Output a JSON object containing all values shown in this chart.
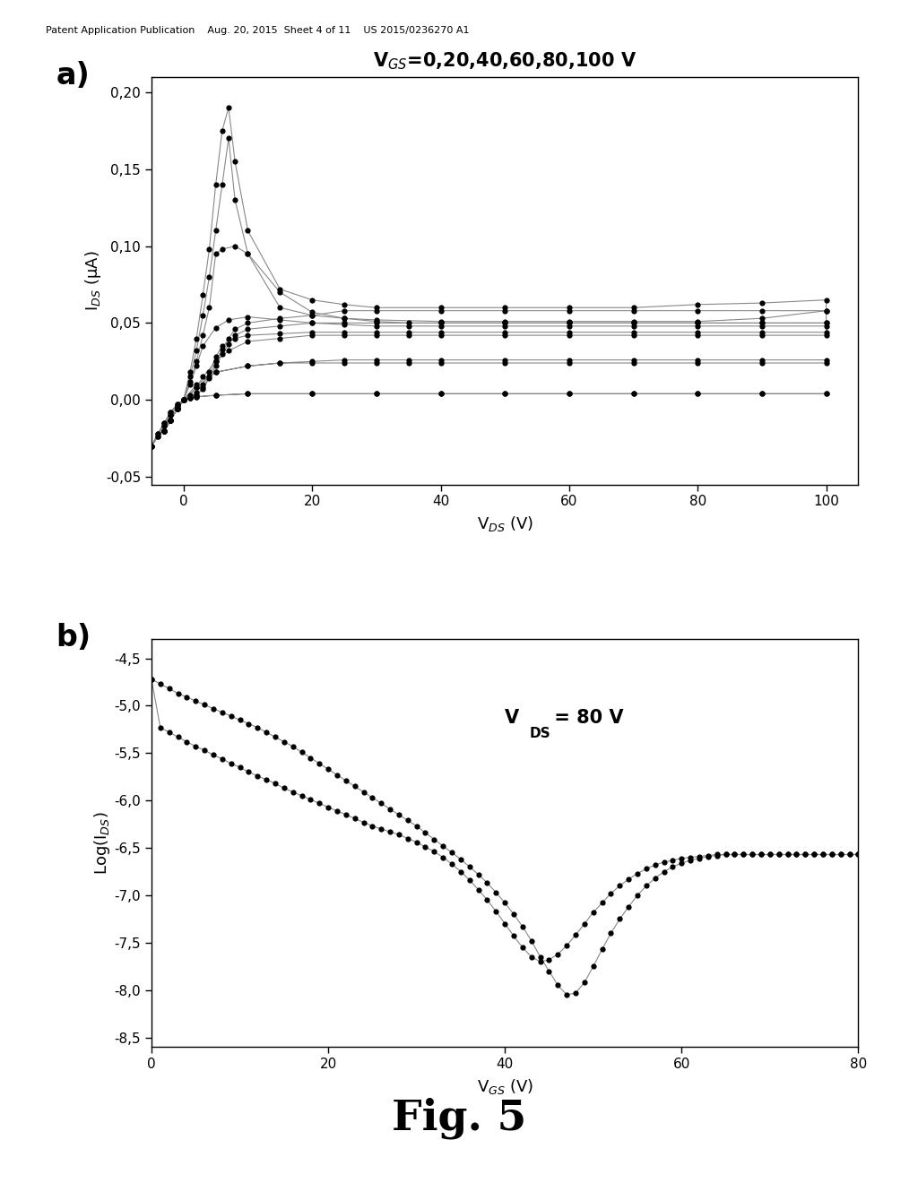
{
  "fig_width": 10.24,
  "fig_height": 13.2,
  "background_color": "#ffffff",
  "panel_a": {
    "title": "V$_{GS}$=0,20,40,60,80,100 V",
    "xlabel": "V$_{DS}$ (V)",
    "ylabel": "I$_{DS}$ (μA)",
    "xlim": [
      -5,
      105
    ],
    "ylim": [
      -0.055,
      0.21
    ],
    "yticks": [
      -0.05,
      0.0,
      0.05,
      0.1,
      0.15,
      0.2
    ],
    "xticks": [
      0,
      20,
      40,
      60,
      80,
      100
    ],
    "curves": [
      {
        "vgs": 0,
        "x": [
          -5,
          -4,
          -3,
          -2,
          -1,
          0,
          2,
          5,
          10,
          20,
          30,
          40,
          50,
          60,
          70,
          80,
          90,
          100,
          100,
          90,
          80,
          70,
          60,
          50,
          40,
          30,
          20,
          10,
          5,
          2,
          0,
          -1,
          -2,
          -3,
          -4,
          -5
        ],
        "y": [
          -0.03,
          -0.024,
          -0.017,
          -0.01,
          -0.004,
          0.0,
          0.002,
          0.003,
          0.004,
          0.004,
          0.004,
          0.004,
          0.004,
          0.004,
          0.004,
          0.004,
          0.004,
          0.004,
          0.004,
          0.004,
          0.004,
          0.004,
          0.004,
          0.004,
          0.004,
          0.004,
          0.004,
          0.004,
          0.003,
          0.002,
          0.0,
          -0.004,
          -0.01,
          -0.017,
          -0.024,
          -0.03
        ]
      },
      {
        "vgs": 20,
        "x": [
          -5,
          -4,
          -3,
          -2,
          -1,
          0,
          2,
          5,
          10,
          15,
          20,
          25,
          30,
          35,
          40,
          50,
          60,
          70,
          80,
          90,
          100,
          100,
          90,
          80,
          70,
          60,
          50,
          40,
          35,
          30,
          25,
          20,
          15,
          10,
          5,
          2,
          0,
          -1,
          -2,
          -3,
          -4,
          -5
        ],
        "y": [
          -0.03,
          -0.022,
          -0.015,
          -0.008,
          -0.003,
          0.0,
          0.01,
          0.018,
          0.022,
          0.024,
          0.025,
          0.026,
          0.026,
          0.026,
          0.026,
          0.026,
          0.026,
          0.026,
          0.026,
          0.026,
          0.026,
          0.024,
          0.024,
          0.024,
          0.024,
          0.024,
          0.024,
          0.024,
          0.024,
          0.024,
          0.024,
          0.024,
          0.024,
          0.022,
          0.018,
          0.008,
          0.0,
          -0.003,
          -0.008,
          -0.015,
          -0.022,
          -0.03
        ]
      },
      {
        "vgs": 40,
        "x": [
          -3,
          -2,
          -1,
          0,
          1,
          2,
          3,
          5,
          7,
          10,
          15,
          20,
          25,
          30,
          35,
          40,
          50,
          60,
          70,
          80,
          90,
          100,
          100,
          90,
          80,
          70,
          60,
          50,
          40,
          35,
          30,
          25,
          20,
          15,
          10,
          7,
          5,
          3,
          2,
          1,
          0,
          -1,
          -2,
          -3
        ],
        "y": [
          -0.02,
          -0.013,
          -0.006,
          0.0,
          0.01,
          0.022,
          0.035,
          0.047,
          0.052,
          0.054,
          0.052,
          0.05,
          0.049,
          0.048,
          0.048,
          0.048,
          0.048,
          0.048,
          0.048,
          0.048,
          0.048,
          0.048,
          0.042,
          0.042,
          0.042,
          0.042,
          0.042,
          0.042,
          0.042,
          0.042,
          0.042,
          0.042,
          0.042,
          0.04,
          0.038,
          0.032,
          0.025,
          0.015,
          0.008,
          0.003,
          0.0,
          -0.006,
          -0.013,
          -0.02
        ]
      },
      {
        "vgs": 60,
        "x": [
          -3,
          -2,
          -1,
          0,
          1,
          2,
          3,
          4,
          5,
          6,
          8,
          10,
          15,
          20,
          25,
          30,
          35,
          40,
          50,
          60,
          70,
          80,
          90,
          100,
          100,
          90,
          80,
          70,
          60,
          50,
          40,
          35,
          30,
          25,
          20,
          15,
          10,
          8,
          6,
          5,
          4,
          3,
          2,
          1,
          0,
          -1,
          -2,
          -3
        ],
        "y": [
          -0.02,
          -0.013,
          -0.006,
          0.0,
          0.012,
          0.025,
          0.042,
          0.06,
          0.095,
          0.098,
          0.1,
          0.095,
          0.07,
          0.057,
          0.053,
          0.051,
          0.05,
          0.05,
          0.05,
          0.05,
          0.05,
          0.05,
          0.05,
          0.05,
          0.044,
          0.044,
          0.044,
          0.044,
          0.044,
          0.044,
          0.044,
          0.044,
          0.044,
          0.044,
          0.044,
          0.043,
          0.042,
          0.04,
          0.035,
          0.028,
          0.018,
          0.01,
          0.005,
          0.001,
          0.0,
          -0.006,
          -0.013,
          -0.02
        ]
      },
      {
        "vgs": 80,
        "x": [
          -3,
          -2,
          -1,
          0,
          1,
          2,
          3,
          4,
          5,
          6,
          7,
          8,
          10,
          15,
          20,
          25,
          30,
          40,
          50,
          60,
          70,
          80,
          90,
          100,
          100,
          90,
          80,
          70,
          60,
          50,
          40,
          30,
          25,
          20,
          15,
          10,
          8,
          7,
          6,
          5,
          4,
          3,
          2,
          1,
          0,
          -1,
          -2,
          -3
        ],
        "y": [
          -0.02,
          -0.013,
          -0.006,
          0.0,
          0.015,
          0.032,
          0.055,
          0.08,
          0.11,
          0.14,
          0.17,
          0.13,
          0.095,
          0.06,
          0.055,
          0.053,
          0.052,
          0.051,
          0.051,
          0.051,
          0.051,
          0.051,
          0.053,
          0.058,
          0.05,
          0.05,
          0.05,
          0.05,
          0.05,
          0.05,
          0.05,
          0.05,
          0.05,
          0.05,
          0.048,
          0.046,
          0.042,
          0.036,
          0.03,
          0.022,
          0.014,
          0.007,
          0.003,
          0.001,
          0.0,
          -0.006,
          -0.013,
          -0.02
        ]
      },
      {
        "vgs": 100,
        "x": [
          -3,
          -2,
          -1,
          0,
          1,
          2,
          3,
          4,
          5,
          6,
          7,
          8,
          10,
          15,
          20,
          25,
          30,
          40,
          50,
          60,
          70,
          80,
          90,
          100,
          100,
          90,
          80,
          70,
          60,
          50,
          40,
          30,
          25,
          20,
          15,
          10,
          8,
          7,
          6,
          5,
          4,
          3,
          2,
          1,
          0,
          -1,
          -2,
          -3
        ],
        "y": [
          -0.02,
          -0.013,
          -0.006,
          0.0,
          0.018,
          0.04,
          0.068,
          0.098,
          0.14,
          0.175,
          0.19,
          0.155,
          0.11,
          0.072,
          0.065,
          0.062,
          0.06,
          0.06,
          0.06,
          0.06,
          0.06,
          0.062,
          0.063,
          0.065,
          0.058,
          0.058,
          0.058,
          0.058,
          0.058,
          0.058,
          0.058,
          0.058,
          0.058,
          0.055,
          0.053,
          0.05,
          0.046,
          0.04,
          0.033,
          0.025,
          0.015,
          0.008,
          0.003,
          0.001,
          0.0,
          -0.006,
          -0.013,
          -0.02
        ]
      }
    ]
  },
  "panel_b": {
    "annotation_line1": "V",
    "annotation_line2": "DS",
    "annotation_line3": " = 80 V",
    "xlabel": "V$_{GS}$ (V)",
    "ylabel": "Log(I$_{DS}$)",
    "xlim": [
      0,
      80
    ],
    "ylim": [
      -8.6,
      -4.3
    ],
    "yticks": [
      -8.5,
      -8.0,
      -7.5,
      -7.0,
      -6.5,
      -6.0,
      -5.5,
      -5.0,
      -4.5
    ],
    "xticks": [
      0,
      20,
      40,
      60,
      80
    ],
    "forward_x": [
      0,
      1,
      2,
      3,
      4,
      5,
      6,
      7,
      8,
      9,
      10,
      11,
      12,
      13,
      14,
      15,
      16,
      17,
      18,
      19,
      20,
      21,
      22,
      23,
      24,
      25,
      26,
      27,
      28,
      29,
      30,
      31,
      32,
      33,
      34,
      35,
      36,
      37,
      38,
      39,
      40,
      41,
      42,
      43,
      44,
      45,
      46,
      47,
      48,
      49,
      50,
      51,
      52,
      53,
      54,
      55,
      56,
      57,
      58,
      59,
      60,
      61,
      62,
      63,
      64,
      65,
      66,
      67,
      68,
      69,
      70,
      71,
      72,
      73,
      74,
      75,
      76,
      77,
      78,
      79,
      80
    ],
    "forward_y": [
      -4.72,
      -4.77,
      -4.82,
      -4.87,
      -4.91,
      -4.95,
      -4.99,
      -5.03,
      -5.07,
      -5.11,
      -5.15,
      -5.19,
      -5.23,
      -5.28,
      -5.33,
      -5.38,
      -5.43,
      -5.49,
      -5.55,
      -5.61,
      -5.67,
      -5.73,
      -5.79,
      -5.85,
      -5.91,
      -5.97,
      -6.03,
      -6.09,
      -6.15,
      -6.21,
      -6.27,
      -6.34,
      -6.41,
      -6.48,
      -6.55,
      -6.62,
      -6.7,
      -6.78,
      -6.87,
      -6.97,
      -7.08,
      -7.2,
      -7.33,
      -7.48,
      -7.65,
      -7.8,
      -7.95,
      -8.05,
      -8.03,
      -7.92,
      -7.75,
      -7.57,
      -7.4,
      -7.25,
      -7.12,
      -7.0,
      -6.9,
      -6.82,
      -6.75,
      -6.7,
      -6.66,
      -6.63,
      -6.61,
      -6.59,
      -6.58,
      -6.57,
      -6.57,
      -6.57,
      -6.57,
      -6.57,
      -6.57,
      -6.57,
      -6.57,
      -6.57,
      -6.57,
      -6.57,
      -6.57,
      -6.57,
      -6.57,
      -6.57,
      -6.57
    ],
    "backward_x": [
      80,
      79,
      78,
      77,
      76,
      75,
      74,
      73,
      72,
      71,
      70,
      69,
      68,
      67,
      66,
      65,
      64,
      63,
      62,
      61,
      60,
      59,
      58,
      57,
      56,
      55,
      54,
      53,
      52,
      51,
      50,
      49,
      48,
      47,
      46,
      45,
      44,
      43,
      42,
      41,
      40,
      39,
      38,
      37,
      36,
      35,
      34,
      33,
      32,
      31,
      30,
      29,
      28,
      27,
      26,
      25,
      24,
      23,
      22,
      21,
      20,
      19,
      18,
      17,
      16,
      15,
      14,
      13,
      12,
      11,
      10,
      9,
      8,
      7,
      6,
      5,
      4,
      3,
      2,
      1,
      0
    ],
    "backward_y": [
      -6.57,
      -6.57,
      -6.57,
      -6.57,
      -6.57,
      -6.57,
      -6.57,
      -6.57,
      -6.57,
      -6.57,
      -6.57,
      -6.57,
      -6.57,
      -6.57,
      -6.57,
      -6.57,
      -6.57,
      -6.58,
      -6.59,
      -6.6,
      -6.61,
      -6.63,
      -6.65,
      -6.68,
      -6.72,
      -6.77,
      -6.83,
      -6.9,
      -6.98,
      -7.08,
      -7.18,
      -7.3,
      -7.42,
      -7.53,
      -7.62,
      -7.68,
      -7.7,
      -7.65,
      -7.55,
      -7.43,
      -7.3,
      -7.17,
      -7.05,
      -6.94,
      -6.84,
      -6.75,
      -6.67,
      -6.6,
      -6.54,
      -6.49,
      -6.44,
      -6.4,
      -6.36,
      -6.33,
      -6.3,
      -6.27,
      -6.23,
      -6.19,
      -6.15,
      -6.11,
      -6.07,
      -6.03,
      -5.99,
      -5.95,
      -5.91,
      -5.87,
      -5.82,
      -5.78,
      -5.74,
      -5.7,
      -5.65,
      -5.61,
      -5.56,
      -5.52,
      -5.47,
      -5.43,
      -5.38,
      -5.33,
      -5.28,
      -5.23,
      -4.72
    ]
  },
  "header_text": "Patent Application Publication    Aug. 20, 2015  Sheet 4 of 11    US 2015/0236270 A1",
  "fig_caption": "Fig. 5",
  "dot_color": "#000000",
  "line_color": "#888888",
  "dot_size": 4.5
}
